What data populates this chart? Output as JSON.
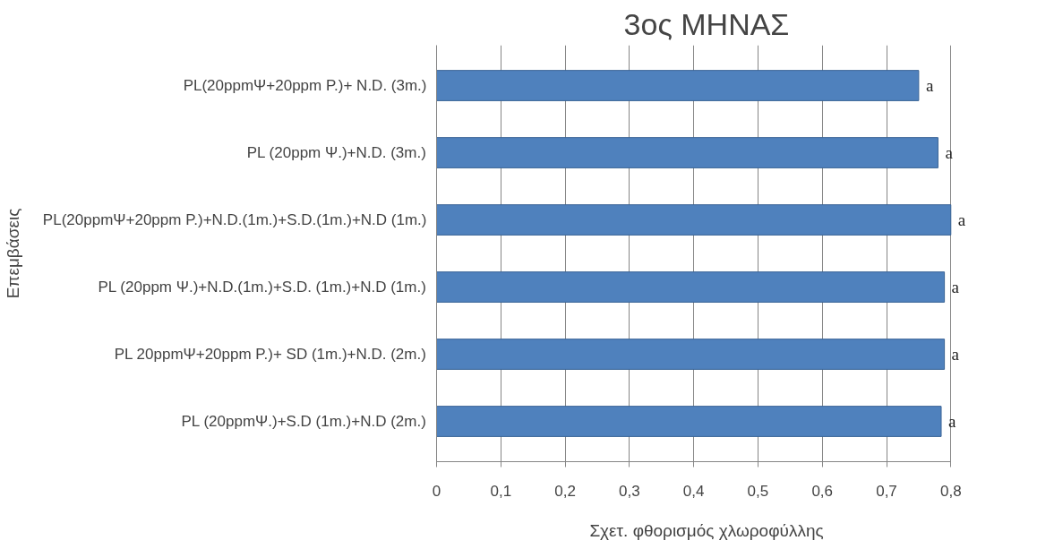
{
  "chart_data": {
    "type": "bar",
    "orientation": "horizontal",
    "title": "3ος ΜΗΝΑΣ",
    "xlabel": "Σχετ. φθορισμός χλωροφύλλης",
    "ylabel": "Επεμβάσεις",
    "categories": [
      "PL(20ppmΨ+20ppm P.)+ N.D. (3m.)",
      "PL (20ppm Ψ.)+N.D. (3m.)",
      "PL(20ppmΨ+20ppm P.)+N.D.(1m.)+S.D.(1m.)+N.D (1m.)",
      "PL (20ppm Ψ.)+N.D.(1m.)+S.D. (1m.)+N.D (1m.)",
      "PL 20ppmΨ+20ppm P.)+ SD (1m.)+N.D. (2m.)",
      "PL (20ppmΨ.)+S.D (1m.)+N.D (2m.)"
    ],
    "values": [
      0.75,
      0.78,
      0.8,
      0.79,
      0.79,
      0.785
    ],
    "value_labels": [
      "a",
      "a",
      "a",
      "a",
      "a",
      "a"
    ],
    "color": "#4f81bd",
    "xlim": [
      0,
      0.8
    ],
    "xticks": [
      0,
      {
        "value": 0.1,
        "label": "0,1"
      },
      {
        "value": 0.2,
        "label": "0,2"
      },
      {
        "value": 0.3,
        "label": "0,3"
      },
      {
        "value": 0.4,
        "label": "0,4"
      },
      {
        "value": 0.5,
        "label": "0,5"
      },
      {
        "value": 0.6,
        "label": "0,6"
      },
      {
        "value": 0.7,
        "label": "0,7"
      },
      {
        "value": 0.8,
        "label": "0,8"
      }
    ],
    "grid": "x"
  }
}
